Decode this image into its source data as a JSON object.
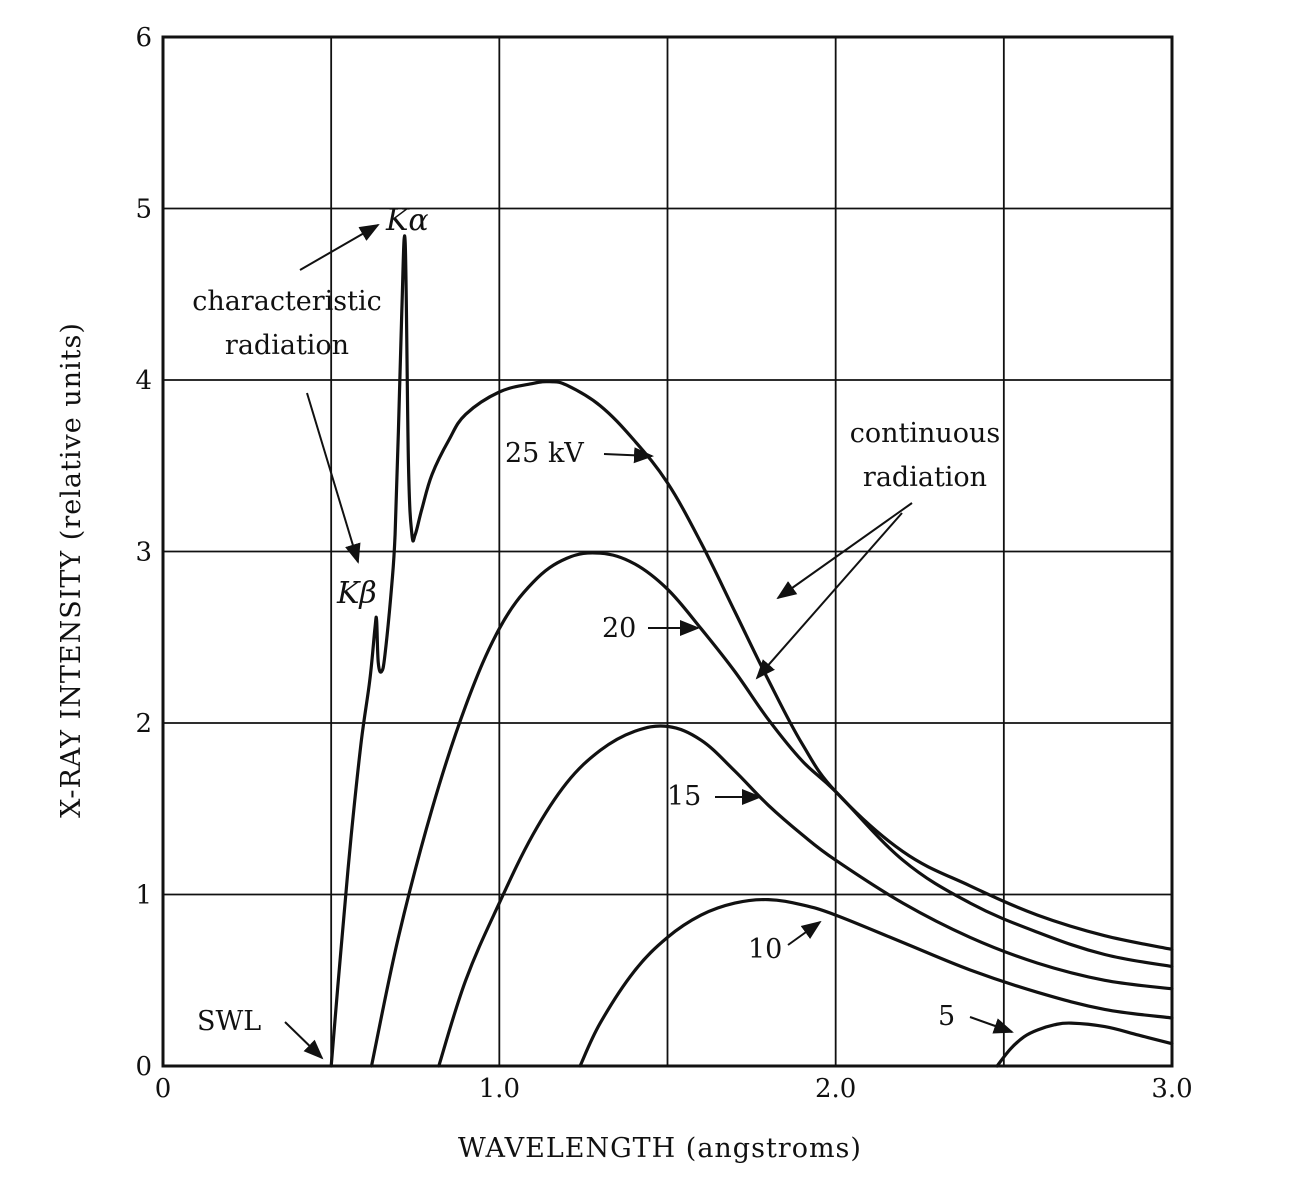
{
  "chart_data": {
    "type": "line",
    "title": "",
    "xlabel": "WAVELENGTH (angstroms)",
    "ylabel": "X-RAY INTENSITY (relative units)",
    "xlim": [
      0,
      3.0
    ],
    "ylim": [
      0,
      6
    ],
    "grid": true,
    "x_ticks": [
      {
        "value": 0,
        "label": "0"
      },
      {
        "value": 1.0,
        "label": "1.0"
      },
      {
        "value": 2.0,
        "label": "2.0"
      },
      {
        "value": 3.0,
        "label": "3.0"
      }
    ],
    "y_ticks": [
      {
        "value": 0,
        "label": "0"
      },
      {
        "value": 1,
        "label": "1"
      },
      {
        "value": 2,
        "label": "2"
      },
      {
        "value": 3,
        "label": "3"
      },
      {
        "value": 4,
        "label": "4"
      },
      {
        "value": 5,
        "label": "5"
      },
      {
        "value": 6,
        "label": "6"
      }
    ],
    "series": [
      {
        "name": "25 kV",
        "x": [
          0.5,
          0.53,
          0.56,
          0.59,
          0.615,
          0.63,
          0.635,
          0.64,
          0.65,
          0.66,
          0.68,
          0.69,
          0.7,
          0.71,
          0.72,
          0.73,
          0.74,
          0.75,
          0.77,
          0.8,
          0.85,
          0.9,
          1.0,
          1.1,
          1.15,
          1.2,
          1.3,
          1.4,
          1.5,
          1.6,
          1.7,
          1.8,
          1.9,
          2.0,
          2.2,
          2.4,
          2.6,
          2.8,
          3.0
        ],
        "y": [
          0.0,
          0.7,
          1.35,
          1.9,
          2.25,
          2.55,
          2.6,
          2.35,
          2.3,
          2.4,
          2.8,
          3.1,
          3.7,
          4.4,
          4.8,
          3.5,
          3.1,
          3.1,
          3.25,
          3.45,
          3.65,
          3.8,
          3.93,
          3.98,
          3.99,
          3.97,
          3.85,
          3.65,
          3.4,
          3.05,
          2.65,
          2.25,
          1.88,
          1.6,
          1.25,
          1.05,
          0.88,
          0.76,
          0.68
        ]
      },
      {
        "name": "20",
        "x": [
          0.62,
          0.7,
          0.8,
          0.9,
          1.0,
          1.1,
          1.2,
          1.3,
          1.4,
          1.5,
          1.6,
          1.7,
          1.8,
          1.9,
          2.0,
          2.2,
          2.4,
          2.6,
          2.8,
          3.0
        ],
        "y": [
          0.0,
          0.75,
          1.5,
          2.1,
          2.55,
          2.82,
          2.96,
          2.99,
          2.93,
          2.78,
          2.55,
          2.3,
          2.02,
          1.78,
          1.6,
          1.2,
          0.95,
          0.78,
          0.65,
          0.58
        ]
      },
      {
        "name": "15",
        "x": [
          0.82,
          0.9,
          1.0,
          1.1,
          1.2,
          1.3,
          1.4,
          1.5,
          1.6,
          1.7,
          1.8,
          1.9,
          2.0,
          2.2,
          2.4,
          2.6,
          2.8,
          3.0
        ],
        "y": [
          0.0,
          0.5,
          0.95,
          1.35,
          1.65,
          1.84,
          1.95,
          1.98,
          1.9,
          1.72,
          1.52,
          1.35,
          1.2,
          0.95,
          0.75,
          0.6,
          0.5,
          0.45
        ]
      },
      {
        "name": "10",
        "x": [
          1.24,
          1.3,
          1.4,
          1.5,
          1.6,
          1.7,
          1.8,
          1.9,
          2.0,
          2.2,
          2.4,
          2.6,
          2.8,
          3.0
        ],
        "y": [
          0.0,
          0.25,
          0.55,
          0.75,
          0.88,
          0.95,
          0.97,
          0.94,
          0.88,
          0.72,
          0.56,
          0.43,
          0.33,
          0.28
        ]
      },
      {
        "name": "5",
        "x": [
          2.48,
          2.52,
          2.56,
          2.6,
          2.65,
          2.7,
          2.8,
          2.9,
          3.0
        ],
        "y": [
          0.0,
          0.1,
          0.17,
          0.21,
          0.24,
          0.25,
          0.23,
          0.18,
          0.13
        ]
      }
    ],
    "annotations": {
      "ka": {
        "text": "α",
        "prefix": "K"
      },
      "kb": {
        "text": "β",
        "prefix": "K"
      },
      "characteristic": [
        "characteristic",
        "radiation"
      ],
      "continuous": [
        "continuous",
        "radiation"
      ],
      "swl": "SWL",
      "label_25": "25 kV",
      "label_20": "20",
      "label_15": "15",
      "label_10": "10",
      "label_5": "5"
    }
  }
}
